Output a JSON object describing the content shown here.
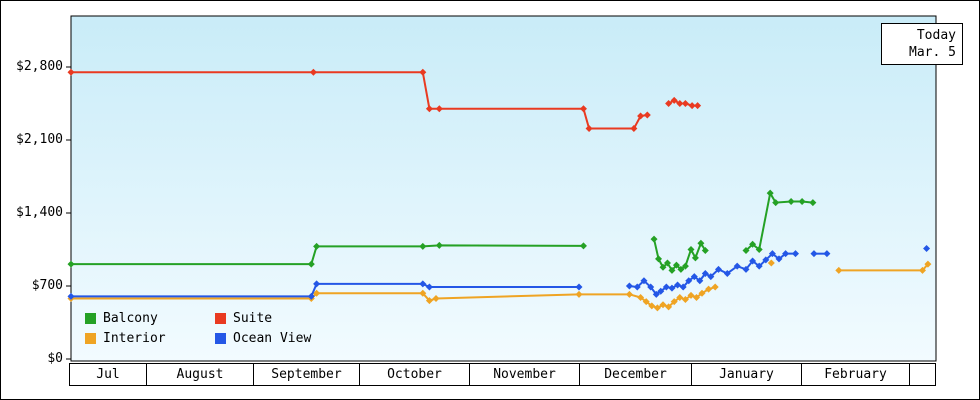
{
  "window": {
    "today_label": "Today",
    "today_date": "Mar. 5"
  },
  "chart_data": {
    "type": "line",
    "title": "",
    "x_unit": "months since Jul 1 (0=Jul, 1=Aug, ... 8=Mar)",
    "x_categories": [
      "Jul",
      "August",
      "September",
      "October",
      "November",
      "December",
      "January",
      "February",
      ""
    ],
    "y_tick_labels": [
      "$0",
      "$700",
      "$1,400",
      "$2,100",
      "$2,800"
    ],
    "y_tick_values": [
      0,
      700,
      1400,
      2100,
      2800
    ],
    "ylim": [
      0,
      3290
    ],
    "grid": "off",
    "legend_position": "bottom-left",
    "series": [
      {
        "name": "Balcony",
        "color": "#25a125",
        "segments": [
          [
            [
              0,
              910
            ],
            [
              2.55,
              910
            ],
            [
              2.6,
              1080
            ],
            [
              3.58,
              1080
            ],
            [
              3.73,
              1090
            ],
            [
              5.04,
              1085
            ]
          ],
          [
            [
              5.67,
              1150
            ],
            [
              5.71,
              960
            ],
            [
              5.75,
              880
            ],
            [
              5.79,
              920
            ],
            [
              5.83,
              850
            ],
            [
              5.87,
              900
            ],
            [
              5.91,
              860
            ],
            [
              5.95,
              890
            ],
            [
              6.0,
              1050
            ],
            [
              6.04,
              970
            ],
            [
              6.09,
              1110
            ],
            [
              6.13,
              1040
            ]
          ],
          [
            [
              6.5,
              1040
            ],
            [
              6.56,
              1100
            ],
            [
              6.62,
              1050
            ],
            [
              6.72,
              1590
            ],
            [
              6.77,
              1500
            ],
            [
              6.91,
              1510
            ],
            [
              7.01,
              1510
            ],
            [
              7.11,
              1500
            ]
          ]
        ]
      },
      {
        "name": "Suite",
        "color": "#e93a21",
        "segments": [
          [
            [
              0,
              2750
            ],
            [
              2.57,
              2750
            ],
            [
              3.58,
              2750
            ],
            [
              3.64,
              2400
            ],
            [
              3.73,
              2400
            ],
            [
              5.04,
              2400
            ],
            [
              5.09,
              2210
            ],
            [
              5.49,
              2210
            ],
            [
              5.55,
              2330
            ],
            [
              5.61,
              2340
            ]
          ],
          [
            [
              5.8,
              2450
            ],
            [
              5.85,
              2480
            ],
            [
              5.9,
              2450
            ],
            [
              5.95,
              2450
            ],
            [
              6.01,
              2430
            ],
            [
              6.06,
              2430
            ]
          ]
        ]
      },
      {
        "name": "Interior",
        "color": "#efa424",
        "segments": [
          [
            [
              0,
              580
            ],
            [
              2.55,
              580
            ],
            [
              2.6,
              630
            ],
            [
              3.58,
              630
            ],
            [
              3.64,
              560
            ],
            [
              3.7,
              580
            ],
            [
              5.0,
              620
            ],
            [
              5.45,
              620
            ],
            [
              5.55,
              590
            ],
            [
              5.6,
              550
            ],
            [
              5.65,
              510
            ],
            [
              5.7,
              490
            ],
            [
              5.75,
              520
            ],
            [
              5.8,
              500
            ],
            [
              5.85,
              550
            ],
            [
              5.9,
              590
            ],
            [
              5.95,
              570
            ],
            [
              6.0,
              610
            ],
            [
              6.05,
              590
            ],
            [
              6.1,
              630
            ],
            [
              6.16,
              670
            ],
            [
              6.22,
              690
            ]
          ],
          [
            [
              6.73,
              920
            ]
          ],
          [
            [
              7.35,
              850
            ],
            [
              8.1,
              850
            ],
            [
              8.14,
              910
            ]
          ]
        ]
      },
      {
        "name": "Ocean View",
        "color": "#2457e6",
        "segments": [
          [
            [
              0,
              600
            ],
            [
              2.55,
              600
            ],
            [
              2.6,
              720
            ],
            [
              3.58,
              720
            ],
            [
              3.64,
              690
            ],
            [
              5.0,
              690
            ]
          ],
          [
            [
              5.45,
              700
            ],
            [
              5.52,
              690
            ],
            [
              5.58,
              750
            ],
            [
              5.64,
              690
            ],
            [
              5.69,
              620
            ],
            [
              5.73,
              650
            ],
            [
              5.78,
              690
            ],
            [
              5.83,
              680
            ],
            [
              5.88,
              710
            ],
            [
              5.93,
              690
            ],
            [
              5.98,
              750
            ],
            [
              6.03,
              790
            ],
            [
              6.08,
              750
            ],
            [
              6.13,
              820
            ],
            [
              6.18,
              790
            ],
            [
              6.25,
              860
            ],
            [
              6.33,
              820
            ],
            [
              6.42,
              890
            ],
            [
              6.5,
              860
            ],
            [
              6.56,
              940
            ],
            [
              6.62,
              890
            ],
            [
              6.68,
              950
            ],
            [
              6.74,
              1010
            ],
            [
              6.8,
              960
            ],
            [
              6.86,
              1010
            ],
            [
              6.95,
              1010
            ]
          ],
          [
            [
              7.12,
              1010
            ],
            [
              7.24,
              1010
            ]
          ],
          [
            [
              8.13,
              1060
            ]
          ]
        ]
      }
    ]
  }
}
